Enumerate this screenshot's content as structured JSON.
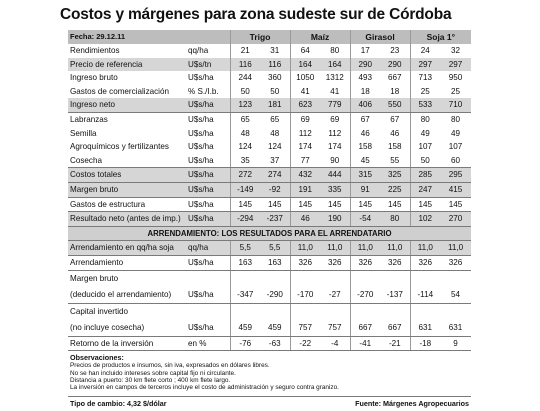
{
  "title": "Costos y márgenes para zona sudeste sur de Córdoba",
  "date_label": "Fecha: 29.12.11",
  "crops": [
    "Trigo",
    "Maíz",
    "Girasol",
    "Soja 1°"
  ],
  "section_title": "ARRENDAMIENTO: LOS RESULTADOS PARA EL ARRENDATARIO",
  "rows_top": [
    {
      "label": "Rendimientos",
      "unit": "qq/ha",
      "values": [
        "21",
        "31",
        "64",
        "80",
        "17",
        "23",
        "24",
        "32"
      ]
    },
    {
      "label": "Precio de referencia",
      "unit": "U$s/tn",
      "values": [
        "116",
        "116",
        "164",
        "164",
        "290",
        "290",
        "297",
        "297"
      ]
    },
    {
      "label": "Ingreso bruto",
      "unit": "U$s/ha",
      "values": [
        "244",
        "360",
        "1050",
        "1312",
        "493",
        "667",
        "713",
        "950"
      ]
    },
    {
      "label": "Gastos de comercialización",
      "unit": "% S./I.b.",
      "values": [
        "50",
        "50",
        "41",
        "41",
        "18",
        "18",
        "25",
        "25"
      ]
    },
    {
      "label": "Ingreso neto",
      "unit": "U$s/ha",
      "values": [
        "123",
        "181",
        "623",
        "779",
        "406",
        "550",
        "533",
        "710"
      ]
    },
    {
      "label": "Labranzas",
      "unit": "U$s/ha",
      "values": [
        "65",
        "65",
        "69",
        "69",
        "67",
        "67",
        "80",
        "80"
      ]
    },
    {
      "label": "Semilla",
      "unit": "U$s/ha",
      "values": [
        "48",
        "48",
        "112",
        "112",
        "46",
        "46",
        "49",
        "49"
      ]
    },
    {
      "label": "Agroquímicos y fertilizantes",
      "unit": "U$s/ha",
      "values": [
        "124",
        "124",
        "174",
        "174",
        "158",
        "158",
        "107",
        "107"
      ]
    },
    {
      "label": "Cosecha",
      "unit": "U$s/ha",
      "values": [
        "35",
        "37",
        "77",
        "90",
        "45",
        "55",
        "50",
        "60"
      ]
    },
    {
      "label": "Costos totales",
      "unit": "U$s/ha",
      "values": [
        "272",
        "274",
        "432",
        "444",
        "315",
        "325",
        "285",
        "295"
      ]
    },
    {
      "label": "Margen bruto",
      "unit": "U$s/ha",
      "values": [
        "-149",
        "-92",
        "191",
        "335",
        "91",
        "225",
        "247",
        "415"
      ]
    },
    {
      "label": "Gastos de estructura",
      "unit": "U$s/ha",
      "values": [
        "145",
        "145",
        "145",
        "145",
        "145",
        "145",
        "145",
        "145"
      ]
    },
    {
      "label": "Resultado neto (antes de imp.)",
      "unit": "U$s/ha",
      "values": [
        "-294",
        "-237",
        "46",
        "190",
        "-54",
        "80",
        "102",
        "270"
      ]
    }
  ],
  "rows_bottom": [
    {
      "label": "Arrendamiento en qq/ha soja",
      "unit": "qq/ha",
      "values": [
        "5,5",
        "5,5",
        "11,0",
        "11,0",
        "11,0",
        "11,0",
        "11,0",
        "11,0"
      ]
    },
    {
      "label": "Arrendamiento",
      "unit": "U$s/ha",
      "values": [
        "163",
        "163",
        "326",
        "326",
        "326",
        "326",
        "326",
        "326"
      ]
    },
    {
      "label": "Margen bruto",
      "unit": "",
      "values": [
        "",
        "",
        "",
        "",
        "",
        "",
        "",
        ""
      ]
    },
    {
      "label": "(deducido el arrendamiento)",
      "unit": "U$s/ha",
      "values": [
        "-347",
        "-290",
        "-170",
        "-27",
        "-270",
        "-137",
        "-114",
        "54"
      ]
    },
    {
      "label": "Capital invertido",
      "unit": "",
      "values": [
        "",
        "",
        "",
        "",
        "",
        "",
        "",
        ""
      ]
    },
    {
      "label": "(no incluye cosecha)",
      "unit": "U$s/ha",
      "values": [
        "459",
        "459",
        "757",
        "757",
        "667",
        "667",
        "631",
        "631"
      ]
    },
    {
      "label": "Retorno de la inversión",
      "unit": "en %",
      "values": [
        "-76",
        "-63",
        "-22",
        "-4",
        "-41",
        "-21",
        "-18",
        "9"
      ]
    }
  ],
  "observations_title": "Observaciones:",
  "observations": [
    "Precios de productos e insumos, sin iva, expresados en dólares libres.",
    "No se han incluido intereses sobre capital fijo ni circulante.",
    "Distancia a puerto: 30 km  flete corto ; 400 km flete largo.",
    "La inversión en campos de terceros incluye el costo de administración y seguro contra granizo."
  ],
  "footer": {
    "exchange_rate": "Tipo de cambio: 4,32  $/dólar",
    "source": "Fuente: Márgenes Agropecuarios"
  }
}
